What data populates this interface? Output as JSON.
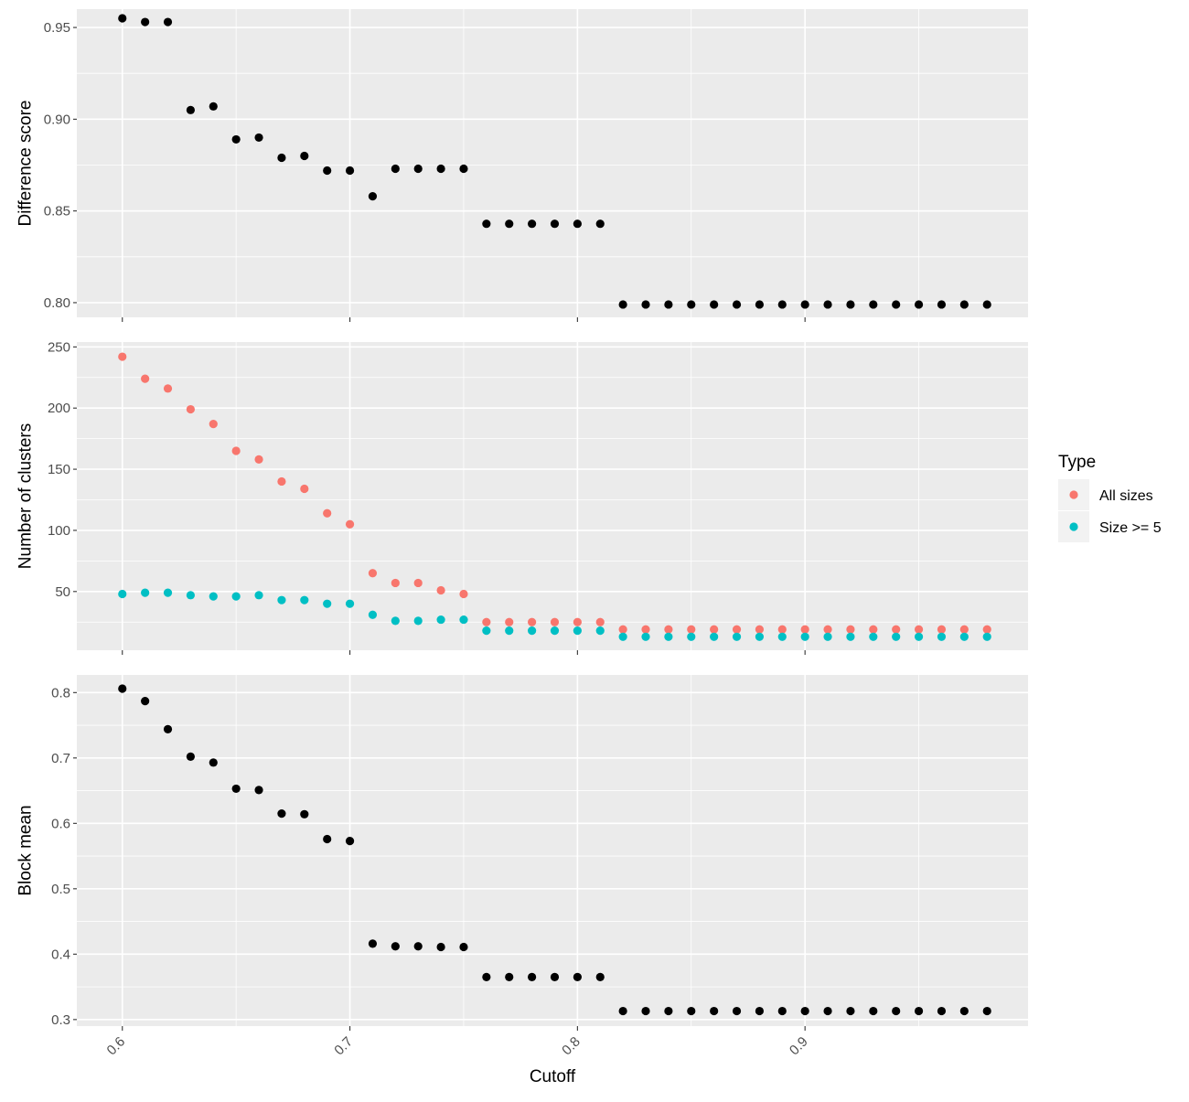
{
  "chart_data": {
    "type": "scatter",
    "x_label": "Cutoff",
    "x_ticks": [
      "0.6",
      "0.7",
      "0.8",
      "0.9"
    ],
    "x_tick_values": [
      0.6,
      0.7,
      0.8,
      0.9
    ],
    "xlim": [
      0.58,
      0.998
    ],
    "x": [
      0.6,
      0.61,
      0.62,
      0.63,
      0.64,
      0.65,
      0.66,
      0.67,
      0.68,
      0.69,
      0.7,
      0.71,
      0.72,
      0.73,
      0.74,
      0.75,
      0.76,
      0.77,
      0.78,
      0.79,
      0.8,
      0.81,
      0.82,
      0.83,
      0.84,
      0.85,
      0.86,
      0.87,
      0.88,
      0.89,
      0.9,
      0.91,
      0.92,
      0.93,
      0.94,
      0.95,
      0.96,
      0.97,
      0.98
    ],
    "panels": [
      {
        "ylabel": "Difference score",
        "ylim": [
          0.792,
          0.96
        ],
        "y_ticks": [
          "0.80",
          "0.85",
          "0.90",
          "0.95"
        ],
        "y_tick_values": [
          0.8,
          0.85,
          0.9,
          0.95
        ],
        "series": [
          {
            "name": "Difference score",
            "color": "#000000",
            "values": [
              0.955,
              0.953,
              0.953,
              0.905,
              0.907,
              0.889,
              0.89,
              0.879,
              0.88,
              0.872,
              0.872,
              0.858,
              0.873,
              0.873,
              0.873,
              0.873,
              0.843,
              0.843,
              0.843,
              0.843,
              0.843,
              0.843,
              0.799,
              0.799,
              0.799,
              0.799,
              0.799,
              0.799,
              0.799,
              0.799,
              0.799,
              0.799,
              0.799,
              0.799,
              0.799,
              0.799,
              0.799,
              0.799,
              0.799
            ]
          }
        ]
      },
      {
        "ylabel": "Number of clusters",
        "ylim": [
          2,
          254
        ],
        "y_ticks": [
          "50",
          "100",
          "150",
          "200",
          "250"
        ],
        "y_tick_values": [
          50,
          100,
          150,
          200,
          250
        ],
        "series": [
          {
            "name": "All sizes",
            "color": "#F8766D",
            "values": [
              242,
              224,
              216,
              199,
              187,
              165,
              158,
              140,
              134,
              114,
              105,
              65,
              57,
              57,
              51,
              48,
              25,
              25,
              25,
              25,
              25,
              25,
              19,
              19,
              19,
              19,
              19,
              19,
              19,
              19,
              19,
              19,
              19,
              19,
              19,
              19,
              19,
              19,
              19
            ]
          },
          {
            "name": "Size >= 5",
            "color": "#00BFC4",
            "values": [
              48,
              49,
              49,
              47,
              46,
              46,
              47,
              43,
              43,
              40,
              40,
              31,
              26,
              26,
              27,
              27,
              18,
              18,
              18,
              18,
              18,
              18,
              13,
              13,
              13,
              13,
              13,
              13,
              13,
              13,
              13,
              13,
              13,
              13,
              13,
              13,
              13,
              13,
              13
            ]
          }
        ]
      },
      {
        "ylabel": "Block mean",
        "ylim": [
          0.29,
          0.827
        ],
        "y_ticks": [
          "0.3",
          "0.4",
          "0.5",
          "0.6",
          "0.7",
          "0.8"
        ],
        "y_tick_values": [
          0.3,
          0.4,
          0.5,
          0.6,
          0.7,
          0.8
        ],
        "series": [
          {
            "name": "Block mean",
            "color": "#000000",
            "values": [
              0.806,
              0.787,
              0.744,
              0.702,
              0.693,
              0.653,
              0.651,
              0.615,
              0.614,
              0.576,
              0.573,
              0.416,
              0.412,
              0.412,
              0.411,
              0.411,
              0.365,
              0.365,
              0.365,
              0.365,
              0.365,
              0.365,
              0.313,
              0.313,
              0.313,
              0.313,
              0.313,
              0.313,
              0.313,
              0.313,
              0.313,
              0.313,
              0.313,
              0.313,
              0.313,
              0.313,
              0.313,
              0.313,
              0.313
            ]
          }
        ]
      }
    ],
    "legend": {
      "title": "Type",
      "placement": "right",
      "items": [
        {
          "label": "All sizes",
          "color": "#F8766D"
        },
        {
          "label": "Size >= 5",
          "color": "#00BFC4"
        }
      ]
    },
    "grid": true
  }
}
